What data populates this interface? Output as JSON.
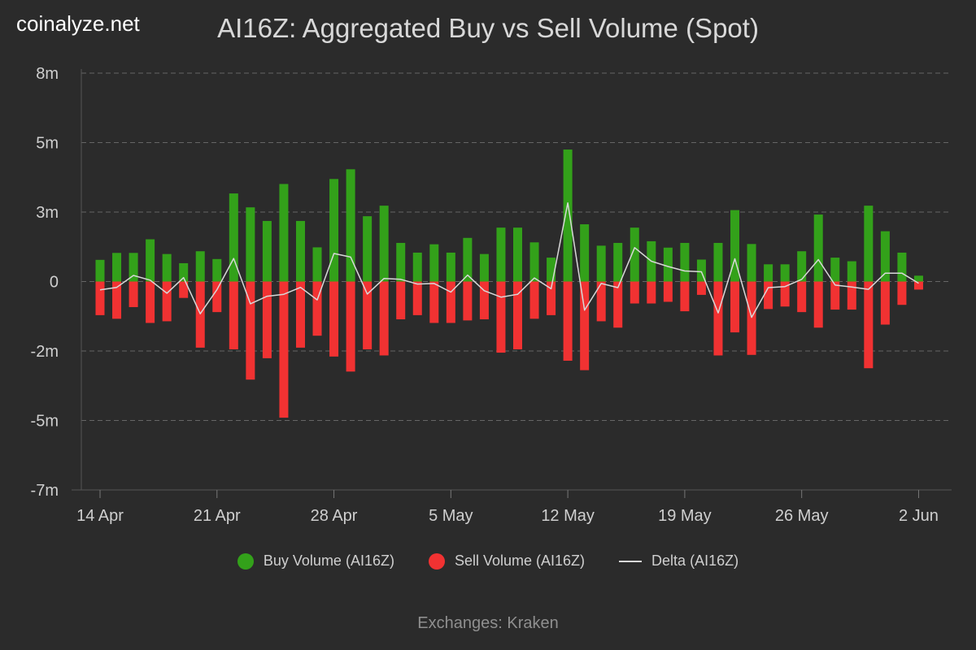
{
  "brand": "coinalyze.net",
  "footer": "Exchanges: Kraken",
  "colors": {
    "background": "#2b2b2b",
    "buy": "#33a11a",
    "sell": "#f13232",
    "delta": "#d8d8d8",
    "grid": "#666666"
  },
  "chart_data": {
    "type": "bar",
    "title": "AI16Z: Aggregated Buy vs Sell Volume (Spot)",
    "xlabel": "",
    "ylabel": "",
    "ylim": [
      -7.5,
      7.5
    ],
    "y_ticks": [
      {
        "value": 7.5,
        "label": "8m"
      },
      {
        "value": 5,
        "label": "5m"
      },
      {
        "value": 2.5,
        "label": "3m"
      },
      {
        "value": 0,
        "label": "0"
      },
      {
        "value": -2.5,
        "label": "-2m"
      },
      {
        "value": -5,
        "label": "-5m"
      },
      {
        "value": -7.5,
        "label": "-7m"
      }
    ],
    "x_ticks": [
      {
        "value": "2025-04-14",
        "label": "14 Apr"
      },
      {
        "value": "2025-04-21",
        "label": "21 Apr"
      },
      {
        "value": "2025-04-28",
        "label": "28 Apr"
      },
      {
        "value": "2025-05-05",
        "label": "5 May"
      },
      {
        "value": "2025-05-12",
        "label": "12 May"
      },
      {
        "value": "2025-05-19",
        "label": "19 May"
      },
      {
        "value": "2025-05-26",
        "label": "26 May"
      },
      {
        "value": "2025-06-02",
        "label": "2 Jun"
      }
    ],
    "legend_position": "bottom",
    "grid": true,
    "dates": [
      "2025-04-14",
      "2025-04-15",
      "2025-04-16",
      "2025-04-17",
      "2025-04-18",
      "2025-04-19",
      "2025-04-20",
      "2025-04-21",
      "2025-04-22",
      "2025-04-23",
      "2025-04-24",
      "2025-04-25",
      "2025-04-26",
      "2025-04-27",
      "2025-04-28",
      "2025-04-29",
      "2025-04-30",
      "2025-05-01",
      "2025-05-02",
      "2025-05-03",
      "2025-05-04",
      "2025-05-05",
      "2025-05-06",
      "2025-05-07",
      "2025-05-08",
      "2025-05-09",
      "2025-05-10",
      "2025-05-11",
      "2025-05-12",
      "2025-05-13",
      "2025-05-14",
      "2025-05-15",
      "2025-05-16",
      "2025-05-17",
      "2025-05-18",
      "2025-05-19",
      "2025-05-20",
      "2025-05-21",
      "2025-05-22",
      "2025-05-23",
      "2025-05-24",
      "2025-05-25",
      "2025-05-26",
      "2025-05-27",
      "2025-05-28",
      "2025-05-29",
      "2025-05-30",
      "2025-05-31",
      "2025-06-01",
      "2025-06-02"
    ],
    "series": [
      {
        "name": "Buy Volume (AI16Z)",
        "values": [
          0.78,
          1.03,
          1.03,
          1.52,
          0.99,
          0.66,
          1.09,
          0.81,
          3.17,
          2.67,
          2.18,
          3.51,
          2.18,
          1.23,
          3.69,
          4.04,
          2.35,
          2.73,
          1.39,
          1.04,
          1.34,
          1.04,
          1.57,
          0.99,
          1.94,
          1.94,
          1.41,
          0.86,
          4.75,
          2.06,
          1.29,
          1.39,
          1.94,
          1.45,
          1.22,
          1.39,
          0.79,
          1.39,
          2.57,
          1.35,
          0.62,
          0.62,
          1.09,
          2.41,
          0.86,
          0.73,
          2.73,
          1.81,
          1.04,
          0.21
        ]
      },
      {
        "name": "Sell Volume (AI16Z)",
        "values": [
          -1.21,
          -1.34,
          -0.92,
          -1.49,
          -1.43,
          -0.59,
          -2.38,
          -1.1,
          -2.44,
          -3.53,
          -2.76,
          -4.9,
          -2.38,
          -1.95,
          -2.7,
          -3.24,
          -2.44,
          -2.66,
          -1.36,
          -1.21,
          -1.49,
          -1.49,
          -1.4,
          -1.36,
          -2.56,
          -2.44,
          -1.34,
          -1.21,
          -2.85,
          -3.19,
          -1.43,
          -1.66,
          -0.79,
          -0.79,
          -0.73,
          -1.07,
          -0.48,
          -2.66,
          -1.83,
          -2.64,
          -0.99,
          -0.9,
          -1.1,
          -1.66,
          -1.01,
          -1.01,
          -3.12,
          -1.55,
          -0.84,
          -0.29
        ]
      },
      {
        "name": "Delta (AI16Z)",
        "values": [
          -0.3,
          -0.21,
          0.22,
          0.05,
          -0.42,
          0.14,
          -1.16,
          -0.29,
          0.83,
          -0.8,
          -0.53,
          -0.46,
          -0.21,
          -0.66,
          1.01,
          0.88,
          -0.45,
          0.11,
          0.08,
          -0.09,
          -0.07,
          -0.38,
          0.23,
          -0.33,
          -0.56,
          -0.46,
          0.13,
          -0.26,
          2.83,
          -1.03,
          -0.07,
          -0.22,
          1.22,
          0.73,
          0.54,
          0.38,
          0.35,
          -1.13,
          0.82,
          -1.29,
          -0.22,
          -0.18,
          0.08,
          0.79,
          -0.13,
          -0.2,
          -0.28,
          0.3,
          0.3,
          -0.06
        ]
      }
    ]
  }
}
